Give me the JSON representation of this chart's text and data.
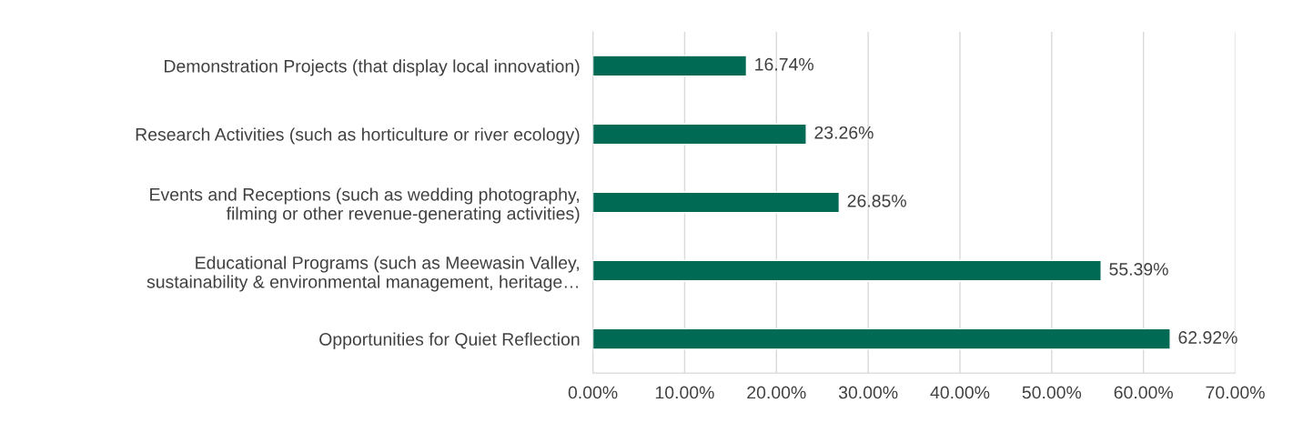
{
  "chart_data": {
    "type": "bar",
    "orientation": "horizontal",
    "categories": [
      "Demonstration Projects (that display local innovation)",
      "Research Activities (such as horticulture or river ecology)",
      "Events and Receptions (such as wedding photography,\nfilming or other revenue-generating activities)",
      "Educational Programs (such as Meewasin Valley,\nsustainability & environmental management, heritage…",
      "Opportunities for Quiet Reflection"
    ],
    "values": [
      16.74,
      23.26,
      26.85,
      55.39,
      62.92
    ],
    "value_labels": [
      "16.74%",
      "23.26%",
      "26.85%",
      "55.39%",
      "62.92%"
    ],
    "color": "#006a55",
    "xlim": [
      0,
      70
    ],
    "xticks": [
      {
        "value": 0,
        "label": "0.00%"
      },
      {
        "value": 10,
        "label": "10.00%"
      },
      {
        "value": 20,
        "label": "20.00%"
      },
      {
        "value": 30,
        "label": "30.00%"
      },
      {
        "value": 40,
        "label": "40.00%"
      },
      {
        "value": 50,
        "label": "50.00%"
      },
      {
        "value": 60,
        "label": "60.00%"
      },
      {
        "value": 70,
        "label": "70.00%"
      }
    ],
    "grid": "x",
    "legend": false
  }
}
